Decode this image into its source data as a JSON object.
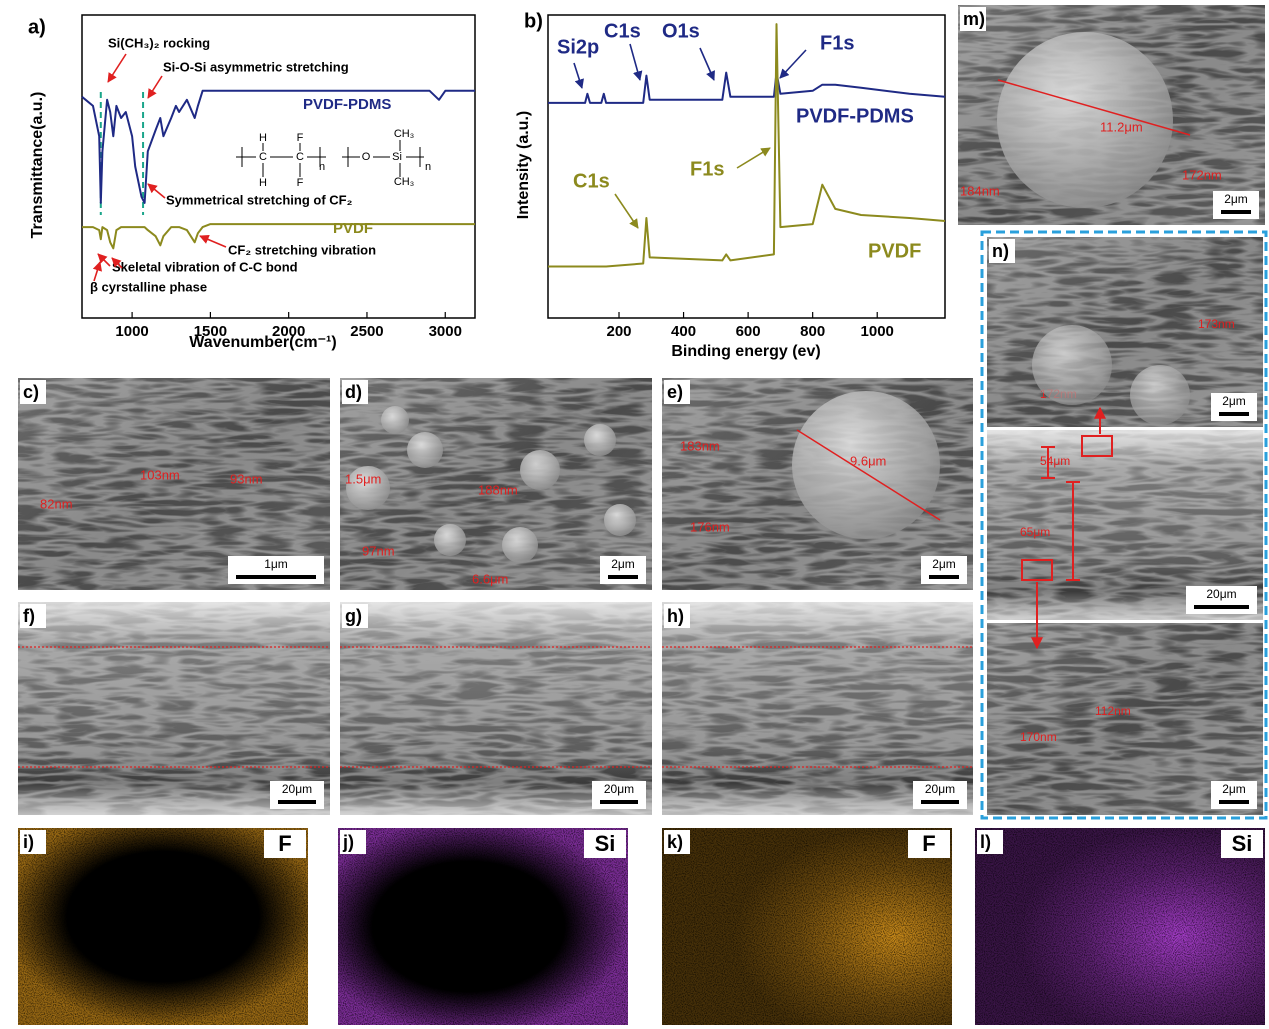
{
  "chart_data": [
    {
      "type": "line",
      "panel_label": "a)",
      "x_label": "Wavenumber(cm⁻¹)",
      "y_label": "Transmittance(a.u.)",
      "xlim": [
        680,
        3190
      ],
      "ylim": [
        0,
        100
      ],
      "xticks": [
        1000,
        1500,
        2000,
        2500,
        3000
      ],
      "markers": [
        800,
        1070
      ],
      "x": [
        680,
        750,
        790,
        800,
        810,
        840,
        860,
        880,
        900,
        930,
        960,
        1000,
        1020,
        1060,
        1080,
        1100,
        1150,
        1180,
        1200,
        1250,
        1280,
        1300,
        1350,
        1400,
        1420,
        1450,
        1500,
        2000,
        2500,
        2900,
        2960,
        3000,
        3190
      ],
      "series": [
        {
          "name": "PVDF-PDMS",
          "color": "#1f2a85",
          "values": [
            73,
            70,
            60,
            38,
            55,
            72,
            68,
            60,
            70,
            66,
            68,
            60,
            50,
            40,
            38,
            55,
            62,
            66,
            60,
            66,
            70,
            68,
            72,
            66,
            70,
            75,
            75,
            75,
            75,
            75,
            72,
            75,
            75
          ]
        },
        {
          "name": "PVDF",
          "color": "#8c8a1e",
          "values": [
            30,
            30,
            29,
            26,
            30,
            29,
            25,
            23,
            29,
            30,
            30,
            30,
            30,
            30,
            30,
            29,
            27,
            24,
            27,
            30,
            30,
            30,
            29,
            25,
            28,
            30,
            31,
            31,
            31,
            31,
            31,
            31,
            31
          ]
        }
      ],
      "annotations": [
        {
          "text": "Si(CH₃)₂ rocking",
          "color": "#000000"
        },
        {
          "text": "Si-O-Si asymmetric stretching",
          "color": "#000000"
        },
        {
          "text": "PVDF-PDMS",
          "color": "#1f2a85"
        },
        {
          "text": "Symmetrical stretching of CF₂",
          "color": "#000000"
        },
        {
          "text": "PVDF",
          "color": "#8c8a1e"
        },
        {
          "text": "CF₂ stretching vibration",
          "color": "#000000"
        },
        {
          "text": "Skeletal vibration of C-C bond",
          "color": "#000000"
        },
        {
          "text": "β cyrstalline phase",
          "color": "#000000"
        }
      ],
      "structure": [
        "H",
        "F",
        "C",
        "C",
        "H",
        "F",
        "n",
        "O",
        "Si",
        "CH₃",
        "CH₃",
        "n"
      ]
    },
    {
      "type": "line",
      "panel_label": "b)",
      "x_label": "Binding energy (ev)",
      "y_label": "Intensity (a.u.)",
      "xlim": [
        -20,
        1210
      ],
      "ylim": [
        0,
        100
      ],
      "xticks": [
        200,
        400,
        600,
        800,
        1000
      ],
      "x": [
        -20,
        95,
        102,
        110,
        145,
        153,
        160,
        275,
        285,
        295,
        520,
        532,
        545,
        680,
        688,
        700,
        800,
        830,
        870,
        950,
        1100,
        1210
      ],
      "series": [
        {
          "name": "PVDF-PDMS",
          "color": "#1f2a85",
          "values": [
            71,
            71,
            74,
            71,
            71,
            74,
            71,
            71,
            80,
            72,
            72,
            81,
            73,
            73,
            81,
            74,
            75,
            77,
            77,
            76,
            74,
            73
          ]
        },
        {
          "name": "PVDF",
          "color": "#8c8a1e",
          "values": [
            17,
            17,
            17,
            17,
            17,
            17,
            17,
            18,
            33,
            20,
            19,
            21,
            19,
            21,
            97,
            30,
            31,
            44,
            36,
            34,
            33,
            32
          ]
        }
      ],
      "annotations": [
        {
          "text": "Si2p",
          "color": "#1f2a85"
        },
        {
          "text": "C1s",
          "color": "#1f2a85"
        },
        {
          "text": "O1s",
          "color": "#1f2a85"
        },
        {
          "text": "F1s",
          "color": "#1f2a85"
        },
        {
          "text": "PVDF-PDMS",
          "color": "#1f2a85"
        },
        {
          "text": "C1s",
          "color": "#8c8a1e"
        },
        {
          "text": "F1s",
          "color": "#8c8a1e"
        },
        {
          "text": "PVDF",
          "color": "#8c8a1e"
        }
      ]
    }
  ],
  "images": [
    {
      "label": "c)",
      "annotations": [
        "82nm",
        "103nm",
        "93nm"
      ],
      "scale_bar": "1μm"
    },
    {
      "label": "d)",
      "annotations": [
        "1.5μm",
        "188nm",
        "97nm",
        "6.6μm"
      ],
      "scale_bar": "2μm"
    },
    {
      "label": "e)",
      "annotations": [
        "183nm",
        "176nm",
        "9.6μm"
      ],
      "scale_bar": "2μm"
    },
    {
      "label": "f)",
      "scale_bar": "20μm"
    },
    {
      "label": "g)",
      "scale_bar": "20μm"
    },
    {
      "label": "h)",
      "scale_bar": "20μm"
    },
    {
      "label": "m)",
      "annotations": [
        "11.2μm",
        "184nm",
        "172nm"
      ],
      "scale_bar": "2μm"
    }
  ],
  "panel_n": {
    "label": "n)",
    "parts": [
      {
        "annotations": [
          "173nm",
          "172nm"
        ],
        "scale_bar": "2μm"
      },
      {
        "annotations": [
          "54μm",
          "65μm"
        ],
        "scale_bar": "20μm"
      },
      {
        "annotations": [
          "112nm",
          "170nm"
        ],
        "scale_bar": "2μm"
      }
    ]
  },
  "maps": [
    {
      "label": "i)",
      "element": "F",
      "color": "#c98a1a"
    },
    {
      "label": "j)",
      "element": "Si",
      "color": "#a43cc8"
    },
    {
      "label": "k)",
      "element": "F",
      "color": "#c98a1a"
    },
    {
      "label": "l)",
      "element": "Si",
      "color": "#a43cc8"
    }
  ]
}
